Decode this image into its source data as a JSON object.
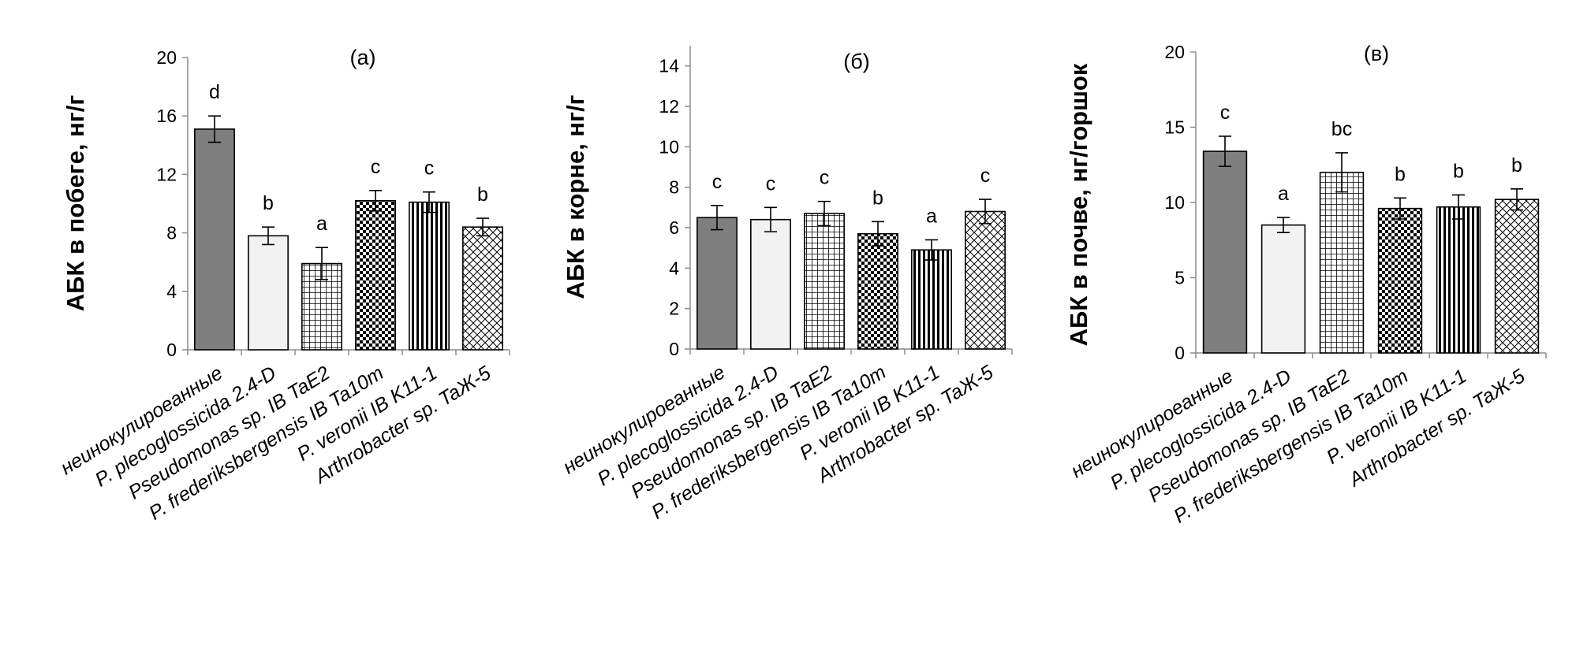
{
  "categories": [
    "неинокулироеанные",
    "P. plecoglossicida 2.4-D",
    "Pseudomonas sp. IB TaE2",
    "P. frederiksbergensis IB Ta10m",
    "P. veronii IB K11-1",
    "Arthrobacter sp. TaЖ-5"
  ],
  "patterns": [
    "solid-dark",
    "solid-light",
    "grid",
    "checker",
    "vertical-lines",
    "crosshatch"
  ],
  "colors": {
    "dark_fill": "#7f7f7f",
    "light_fill": "#f2f2f2",
    "axis": "#8c8c8c"
  },
  "chart_data": [
    {
      "type": "bar",
      "title": "(a)",
      "ylabel": "АБК в побеге, нг/г",
      "ylim": [
        0,
        20
      ],
      "yticks": [
        0,
        4,
        8,
        12,
        16,
        20
      ],
      "values": [
        15.1,
        7.8,
        5.9,
        10.2,
        10.1,
        8.4
      ],
      "errors": [
        0.9,
        0.6,
        1.1,
        0.7,
        0.7,
        0.6
      ],
      "significance": [
        "d",
        "b",
        "a",
        "c",
        "c",
        "b"
      ]
    },
    {
      "type": "bar",
      "title": "(б)",
      "ylabel": "АБК в корне, нг/г",
      "ylim": [
        0,
        15
      ],
      "yticks": [
        0,
        2,
        4,
        6,
        8,
        10,
        12,
        14
      ],
      "values": [
        6.5,
        6.4,
        6.7,
        5.7,
        4.9,
        6.8
      ],
      "errors": [
        0.6,
        0.6,
        0.6,
        0.6,
        0.5,
        0.6
      ],
      "significance": [
        "c",
        "c",
        "c",
        "b",
        "a",
        "c"
      ]
    },
    {
      "type": "bar",
      "title": "(в)",
      "ylabel": "АБК в почве, нг/горшок",
      "ylim": [
        0,
        20
      ],
      "yticks": [
        0,
        5,
        10,
        15,
        20
      ],
      "values": [
        13.4,
        8.5,
        12.0,
        9.6,
        9.7,
        10.2
      ],
      "errors": [
        1.0,
        0.5,
        1.3,
        0.7,
        0.8,
        0.7
      ],
      "significance": [
        "c",
        "a",
        "bc",
        "b",
        "b",
        "b"
      ]
    }
  ]
}
